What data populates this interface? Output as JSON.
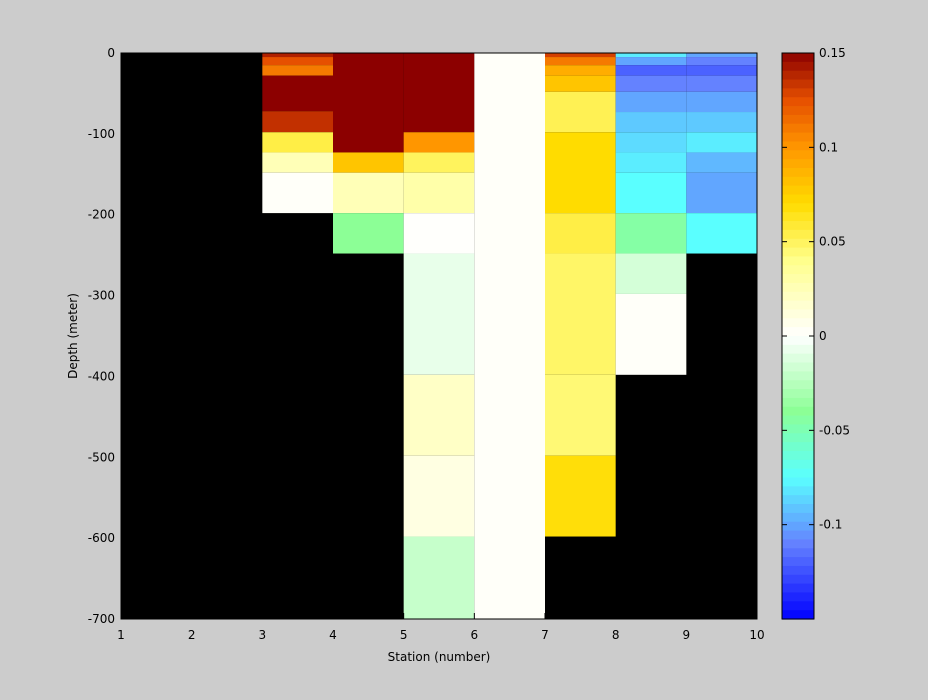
{
  "chart_data": {
    "type": "heatmap",
    "title": "",
    "xlabel": "Station (number)",
    "ylabel": "Depth (meter)",
    "xlim": [
      1,
      10
    ],
    "ylim": [
      -700,
      0
    ],
    "xticks": [
      "1",
      "2",
      "3",
      "4",
      "5",
      "6",
      "7",
      "8",
      "9",
      "10"
    ],
    "yticks": [
      "0",
      "-100",
      "-200",
      "-300",
      "-400",
      "-500",
      "-600",
      "-700"
    ],
    "background_color": "#000000",
    "colorbar": {
      "clim": [
        -0.15,
        0.15
      ],
      "ticks": [
        "0.15",
        "0.1",
        "0.05",
        "0",
        "-0.05",
        "-0.1"
      ],
      "colormap": "blue-cyan-green-white-yellow-orange-red"
    },
    "cells": [
      {
        "x": [
          3,
          4
        ],
        "y": [
          -5,
          0
        ],
        "value": 0.14
      },
      {
        "x": [
          3,
          4
        ],
        "y": [
          -15,
          -5
        ],
        "value": 0.125
      },
      {
        "x": [
          3,
          4
        ],
        "y": [
          -28,
          -15
        ],
        "value": 0.11
      },
      {
        "x": [
          3,
          4
        ],
        "y": [
          -72,
          -28
        ],
        "value": 0.15
      },
      {
        "x": [
          3,
          4
        ],
        "y": [
          -98,
          -72
        ],
        "value": 0.135
      },
      {
        "x": [
          3,
          4
        ],
        "y": [
          -123,
          -98
        ],
        "value": 0.055
      },
      {
        "x": [
          3,
          4
        ],
        "y": [
          -148,
          -123
        ],
        "value": 0.025
      },
      {
        "x": [
          3,
          4
        ],
        "y": [
          -198,
          -148
        ],
        "value": 0.002
      },
      {
        "x": [
          4,
          5
        ],
        "y": [
          -123,
          0
        ],
        "value": 0.15
      },
      {
        "x": [
          4,
          5
        ],
        "y": [
          -148,
          -123
        ],
        "value": 0.08
      },
      {
        "x": [
          4,
          5
        ],
        "y": [
          -198,
          -148
        ],
        "value": 0.025
      },
      {
        "x": [
          4,
          5
        ],
        "y": [
          -248,
          -198
        ],
        "value": -0.04
      },
      {
        "x": [
          5,
          6
        ],
        "y": [
          -98,
          0
        ],
        "value": 0.15
      },
      {
        "x": [
          5,
          6
        ],
        "y": [
          -123,
          -98
        ],
        "value": 0.1
      },
      {
        "x": [
          5,
          6
        ],
        "y": [
          -148,
          -123
        ],
        "value": 0.05
      },
      {
        "x": [
          5,
          6
        ],
        "y": [
          -198,
          -148
        ],
        "value": 0.03
      },
      {
        "x": [
          5,
          6
        ],
        "y": [
          -248,
          -198
        ],
        "value": 0.001
      },
      {
        "x": [
          5,
          6
        ],
        "y": [
          -398,
          -248
        ],
        "value": -0.008
      },
      {
        "x": [
          5,
          6
        ],
        "y": [
          -498,
          -398
        ],
        "value": 0.02
      },
      {
        "x": [
          5,
          6
        ],
        "y": [
          -598,
          -498
        ],
        "value": 0.01
      },
      {
        "x": [
          5,
          6
        ],
        "y": [
          -700,
          -598
        ],
        "value": -0.02
      },
      {
        "x": [
          6,
          7
        ],
        "y": [
          -700,
          0
        ],
        "value": 0.002
      },
      {
        "x": [
          7,
          8
        ],
        "y": [
          -5,
          0
        ],
        "value": 0.13
      },
      {
        "x": [
          7,
          8
        ],
        "y": [
          -15,
          -5
        ],
        "value": 0.11
      },
      {
        "x": [
          7,
          8
        ],
        "y": [
          -28,
          -15
        ],
        "value": 0.09
      },
      {
        "x": [
          7,
          8
        ],
        "y": [
          -48,
          -28
        ],
        "value": 0.08
      },
      {
        "x": [
          7,
          8
        ],
        "y": [
          -98,
          -48
        ],
        "value": 0.052
      },
      {
        "x": [
          7,
          8
        ],
        "y": [
          -198,
          -98
        ],
        "value": 0.07
      },
      {
        "x": [
          7,
          8
        ],
        "y": [
          -248,
          -198
        ],
        "value": 0.055
      },
      {
        "x": [
          7,
          8
        ],
        "y": [
          -398,
          -248
        ],
        "value": 0.048
      },
      {
        "x": [
          7,
          8
        ],
        "y": [
          -498,
          -398
        ],
        "value": 0.045
      },
      {
        "x": [
          7,
          8
        ],
        "y": [
          -598,
          -498
        ],
        "value": 0.068
      },
      {
        "x": [
          8,
          9
        ],
        "y": [
          -5,
          0
        ],
        "value": -0.08
      },
      {
        "x": [
          8,
          9
        ],
        "y": [
          -15,
          -5
        ],
        "value": -0.1
      },
      {
        "x": [
          8,
          9
        ],
        "y": [
          -28,
          -15
        ],
        "value": -0.12
      },
      {
        "x": [
          8,
          9
        ],
        "y": [
          -48,
          -28
        ],
        "value": -0.11
      },
      {
        "x": [
          8,
          9
        ],
        "y": [
          -73,
          -48
        ],
        "value": -0.1
      },
      {
        "x": [
          8,
          9
        ],
        "y": [
          -98,
          -73
        ],
        "value": -0.09
      },
      {
        "x": [
          8,
          9
        ],
        "y": [
          -123,
          -98
        ],
        "value": -0.085
      },
      {
        "x": [
          8,
          9
        ],
        "y": [
          -148,
          -123
        ],
        "value": -0.08
      },
      {
        "x": [
          8,
          9
        ],
        "y": [
          -198,
          -148
        ],
        "value": -0.075
      },
      {
        "x": [
          8,
          9
        ],
        "y": [
          -248,
          -198
        ],
        "value": -0.045
      },
      {
        "x": [
          8,
          9
        ],
        "y": [
          -298,
          -248
        ],
        "value": -0.015
      },
      {
        "x": [
          8,
          9
        ],
        "y": [
          -398,
          -298
        ],
        "value": 0.002
      },
      {
        "x": [
          9,
          10
        ],
        "y": [
          -5,
          0
        ],
        "value": -0.1
      },
      {
        "x": [
          9,
          10
        ],
        "y": [
          -15,
          -5
        ],
        "value": -0.11
      },
      {
        "x": [
          9,
          10
        ],
        "y": [
          -28,
          -15
        ],
        "value": -0.12
      },
      {
        "x": [
          9,
          10
        ],
        "y": [
          -48,
          -28
        ],
        "value": -0.11
      },
      {
        "x": [
          9,
          10
        ],
        "y": [
          -73,
          -48
        ],
        "value": -0.1
      },
      {
        "x": [
          9,
          10
        ],
        "y": [
          -98,
          -73
        ],
        "value": -0.09
      },
      {
        "x": [
          9,
          10
        ],
        "y": [
          -123,
          -98
        ],
        "value": -0.08
      },
      {
        "x": [
          9,
          10
        ],
        "y": [
          -148,
          -123
        ],
        "value": -0.095
      },
      {
        "x": [
          9,
          10
        ],
        "y": [
          -198,
          -148
        ],
        "value": -0.1
      },
      {
        "x": [
          9,
          10
        ],
        "y": [
          -248,
          -198
        ],
        "value": -0.075
      }
    ]
  }
}
